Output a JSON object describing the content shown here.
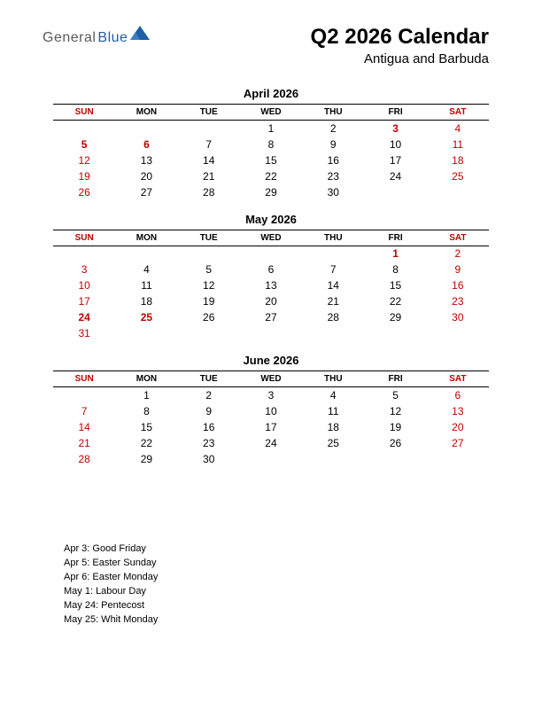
{
  "logo": {
    "part1": "General",
    "part2": "Blue",
    "icon_color": "#1e5fa8"
  },
  "header": {
    "title": "Q2 2026 Calendar",
    "subtitle": "Antigua and Barbuda"
  },
  "colors": {
    "weekend": "#c00000",
    "holiday": "#c00000",
    "text": "#000000",
    "background": "#ffffff",
    "border": "#000000"
  },
  "day_headers": [
    "SUN",
    "MON",
    "TUE",
    "WED",
    "THU",
    "FRI",
    "SAT"
  ],
  "weekend_columns": [
    0,
    6
  ],
  "months": [
    {
      "title": "April 2026",
      "holiday_days": [
        3,
        5,
        6
      ],
      "weeks": [
        [
          "",
          "",
          "",
          "1",
          "2",
          "3",
          "4"
        ],
        [
          "5",
          "6",
          "7",
          "8",
          "9",
          "10",
          "11"
        ],
        [
          "12",
          "13",
          "14",
          "15",
          "16",
          "17",
          "18"
        ],
        [
          "19",
          "20",
          "21",
          "22",
          "23",
          "24",
          "25"
        ],
        [
          "26",
          "27",
          "28",
          "29",
          "30",
          "",
          ""
        ]
      ]
    },
    {
      "title": "May 2026",
      "holiday_days": [
        1,
        24,
        25
      ],
      "weeks": [
        [
          "",
          "",
          "",
          "",
          "",
          "1",
          "2"
        ],
        [
          "3",
          "4",
          "5",
          "6",
          "7",
          "8",
          "9"
        ],
        [
          "10",
          "11",
          "12",
          "13",
          "14",
          "15",
          "16"
        ],
        [
          "17",
          "18",
          "19",
          "20",
          "21",
          "22",
          "23"
        ],
        [
          "24",
          "25",
          "26",
          "27",
          "28",
          "29",
          "30"
        ],
        [
          "31",
          "",
          "",
          "",
          "",
          "",
          ""
        ]
      ]
    },
    {
      "title": "June 2026",
      "holiday_days": [],
      "weeks": [
        [
          "",
          "1",
          "2",
          "3",
          "4",
          "5",
          "6"
        ],
        [
          "7",
          "8",
          "9",
          "10",
          "11",
          "12",
          "13"
        ],
        [
          "14",
          "15",
          "16",
          "17",
          "18",
          "19",
          "20"
        ],
        [
          "21",
          "22",
          "23",
          "24",
          "25",
          "26",
          "27"
        ],
        [
          "28",
          "29",
          "30",
          "",
          "",
          "",
          ""
        ]
      ]
    }
  ],
  "holidays_list": [
    "Apr 3: Good Friday",
    "Apr 5: Easter Sunday",
    "Apr 6: Easter Monday",
    "May 1: Labour Day",
    "May 24: Pentecost",
    "May 25: Whit Monday"
  ]
}
